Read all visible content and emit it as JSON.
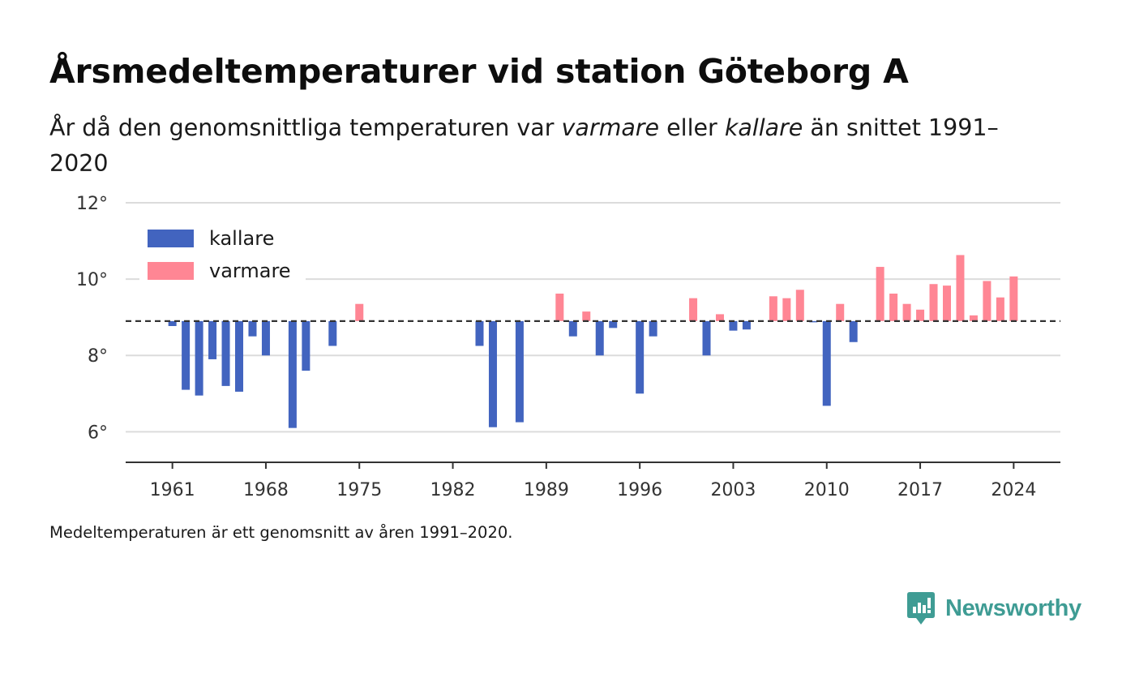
{
  "title": "Årsmedeltemperaturer vid station Göteborg A",
  "subtitle": {
    "part1": "År då den genomsnittliga temperaturen var ",
    "warm_word": "varmare",
    "part2": " eller ",
    "cold_word": "kallare",
    "part3": " än snittet 1991–2020"
  },
  "footnote": "Medeltemperaturen är ett genomsnitt av åren 1991–2020.",
  "brand": {
    "name": "Newsworthy",
    "icon": "newsworthy-logo-icon",
    "color": "#3f9c94"
  },
  "chart_data": {
    "type": "bar",
    "baseline": 8.9,
    "baseline_style": "dashed",
    "ylim": [
      5.2,
      12
    ],
    "yticks": [
      6,
      8,
      10,
      12
    ],
    "ytick_labels": [
      "6°",
      "8°",
      "10°",
      "12°"
    ],
    "xlim": [
      1957.5,
      2027.5
    ],
    "xticks": [
      1961,
      1968,
      1975,
      1982,
      1989,
      1996,
      2003,
      2010,
      2017,
      2024
    ],
    "xtick_labels": [
      "1961",
      "1968",
      "1975",
      "1982",
      "1989",
      "1996",
      "2003",
      "2010",
      "2017",
      "2024"
    ],
    "grid": true,
    "legend_position": "top-left",
    "colors": {
      "kallare": "#4264bf",
      "varmare": "#ff8694"
    },
    "series": [
      {
        "name": "kallare",
        "points": [
          {
            "x": 1961,
            "y": 8.77
          },
          {
            "x": 1962,
            "y": 7.1
          },
          {
            "x": 1963,
            "y": 6.95
          },
          {
            "x": 1964,
            "y": 7.9
          },
          {
            "x": 1965,
            "y": 7.2
          },
          {
            "x": 1966,
            "y": 7.05
          },
          {
            "x": 1967,
            "y": 8.5
          },
          {
            "x": 1968,
            "y": 8.0
          },
          {
            "x": 1970,
            "y": 6.1
          },
          {
            "x": 1971,
            "y": 7.6
          },
          {
            "x": 1973,
            "y": 8.25
          },
          {
            "x": 1984,
            "y": 8.25
          },
          {
            "x": 1985,
            "y": 6.12
          },
          {
            "x": 1987,
            "y": 6.25
          },
          {
            "x": 1991,
            "y": 8.5
          },
          {
            "x": 1993,
            "y": 8.0
          },
          {
            "x": 1994,
            "y": 8.72
          },
          {
            "x": 1996,
            "y": 7.0
          },
          {
            "x": 1997,
            "y": 8.5
          },
          {
            "x": 2001,
            "y": 8.0
          },
          {
            "x": 2003,
            "y": 8.65
          },
          {
            "x": 2004,
            "y": 8.68
          },
          {
            "x": 2009,
            "y": 8.88
          },
          {
            "x": 2010,
            "y": 6.68
          },
          {
            "x": 2012,
            "y": 8.35
          }
        ]
      },
      {
        "name": "varmare",
        "points": [
          {
            "x": 1975,
            "y": 9.35
          },
          {
            "x": 1990,
            "y": 9.62
          },
          {
            "x": 1992,
            "y": 9.15
          },
          {
            "x": 2000,
            "y": 9.5
          },
          {
            "x": 2002,
            "y": 9.08
          },
          {
            "x": 2006,
            "y": 9.55
          },
          {
            "x": 2007,
            "y": 9.5
          },
          {
            "x": 2008,
            "y": 9.72
          },
          {
            "x": 2011,
            "y": 9.35
          },
          {
            "x": 2014,
            "y": 10.32
          },
          {
            "x": 2015,
            "y": 9.62
          },
          {
            "x": 2016,
            "y": 9.35
          },
          {
            "x": 2017,
            "y": 9.2
          },
          {
            "x": 2018,
            "y": 9.87
          },
          {
            "x": 2019,
            "y": 9.83
          },
          {
            "x": 2020,
            "y": 10.63
          },
          {
            "x": 2021,
            "y": 9.05
          },
          {
            "x": 2022,
            "y": 9.95
          },
          {
            "x": 2023,
            "y": 9.52
          },
          {
            "x": 2024,
            "y": 10.07
          }
        ]
      }
    ]
  }
}
